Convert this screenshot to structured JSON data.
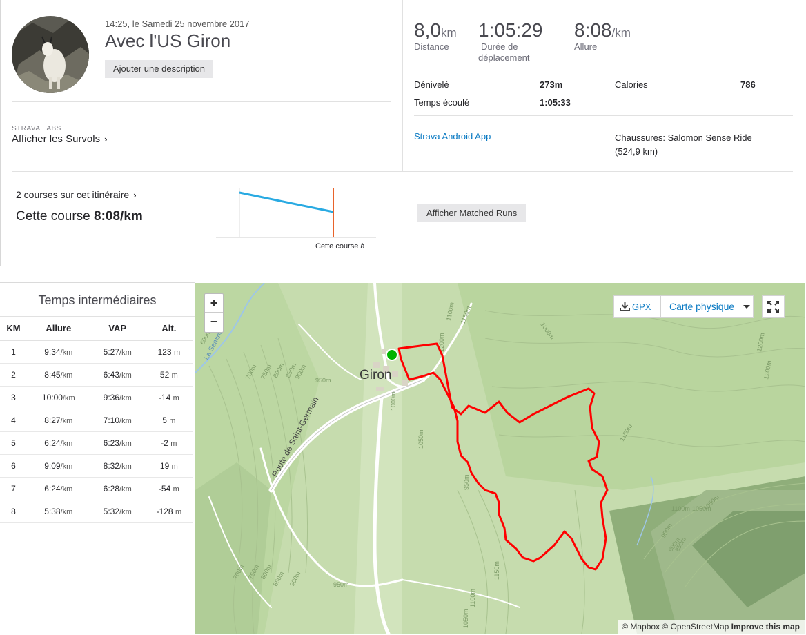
{
  "activity": {
    "date": "14:25, le Samedi 25 novembre 2017",
    "title": "Avec l'US Giron",
    "add_description": "Ajouter une description"
  },
  "labs": {
    "label": "STRAVA LABS",
    "flyby_link": "Afficher les Survols"
  },
  "stats": {
    "distance": {
      "value": "8,0",
      "unit": "km",
      "label": "Distance"
    },
    "moving_time": {
      "value": "1:05:29",
      "label_line1": "Durée de",
      "label_line2": "déplacement"
    },
    "pace": {
      "value": "8:08",
      "unit": "/km",
      "label": "Allure"
    },
    "elevation_label": "Dénivelé",
    "elevation_value": "273m",
    "calories_label": "Calories",
    "calories_value": "786",
    "elapsed_label": "Temps écoulé",
    "elapsed_value": "1:05:33",
    "device": "Strava Android App",
    "shoes_line1": "Chaussures: Salomon Sense Ride",
    "shoes_line2": "(524,9 km)"
  },
  "matched": {
    "link": "2 courses sur cet itinéraire",
    "this_run_prefix": "Cette course",
    "this_run_pace": "8:08/km",
    "chart_caption": "Cette course à",
    "button": "Afficher Matched Runs",
    "line_color": "#29aae2",
    "marker_color": "#e8632b"
  },
  "splits": {
    "title": "Temps intermédiaires",
    "columns": [
      "KM",
      "Allure",
      "VAP",
      "Alt."
    ],
    "unit_pace": "/km",
    "unit_alt": "m",
    "rows": [
      {
        "km": "1",
        "pace": "9:34",
        "gap": "5:27",
        "alt": "123"
      },
      {
        "km": "2",
        "pace": "8:45",
        "gap": "6:43",
        "alt": "52"
      },
      {
        "km": "3",
        "pace": "10:00",
        "gap": "9:36",
        "alt": "-14"
      },
      {
        "km": "4",
        "pace": "8:27",
        "gap": "7:10",
        "alt": "5"
      },
      {
        "km": "5",
        "pace": "6:24",
        "gap": "6:23",
        "alt": "-2"
      },
      {
        "km": "6",
        "pace": "9:09",
        "gap": "8:32",
        "alt": "19"
      },
      {
        "km": "7",
        "pace": "6:24",
        "gap": "6:28",
        "alt": "-54"
      },
      {
        "km": "8",
        "pace": "5:38",
        "gap": "5:32",
        "alt": "-128"
      }
    ]
  },
  "map": {
    "zoom_in": "+",
    "zoom_out": "−",
    "gpx": "GPX",
    "layer": "Carte physique",
    "town": "Giron",
    "road_label": "Route de Saint-Germain",
    "contours": [
      "600m",
      "700m",
      "750m",
      "800m",
      "850m",
      "900m",
      "950m",
      "1000m",
      "1050m",
      "1100m",
      "1150m",
      "1200m",
      "950m",
      "1000m",
      "1150m",
      "1100m",
      "1050m",
      "1050m",
      "950m",
      "900m",
      "850m",
      "700m",
      "750m",
      "800m",
      "850m",
      "900m",
      "950m",
      "1150m",
      "1100m",
      "1050m",
      "1200m",
      "1200m"
    ],
    "stream_label": "La Semine",
    "attribution_1": "© Mapbox © OpenStreetMap",
    "attribution_2": "Improve this map",
    "route_color": "#ff0000",
    "start_color": "#00b300"
  }
}
